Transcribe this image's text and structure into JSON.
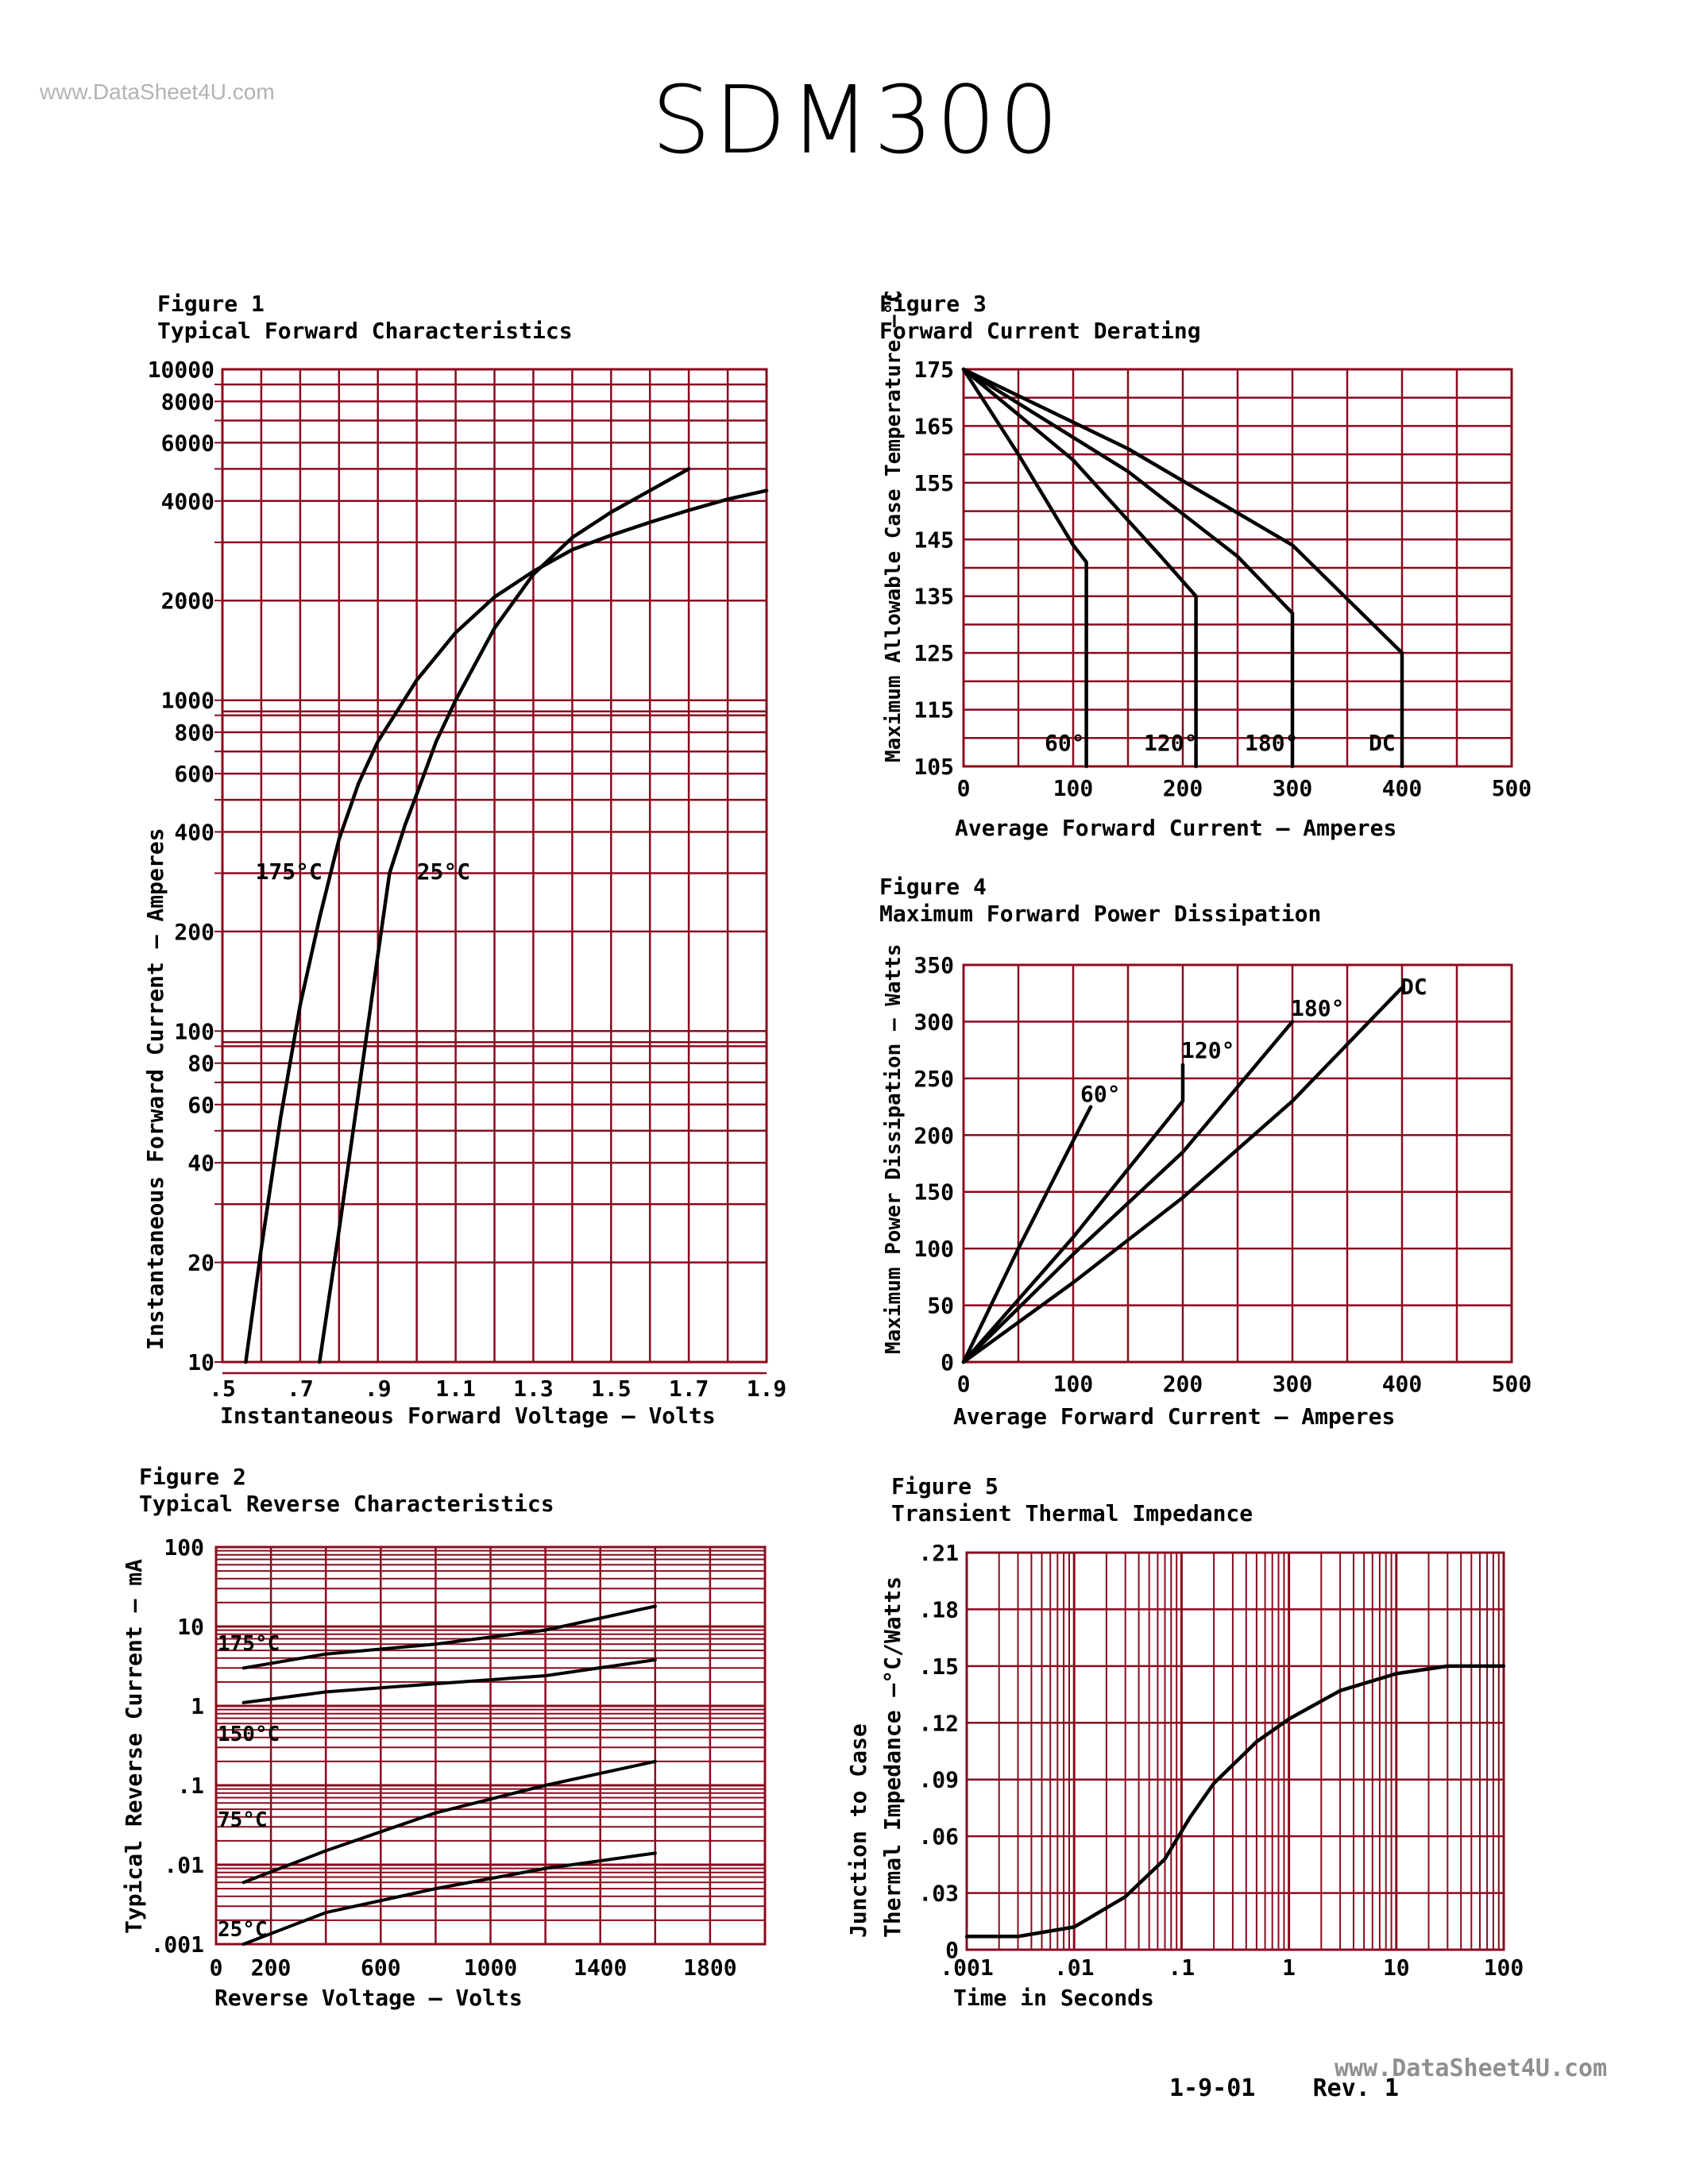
{
  "watermark_top": "www.DataSheet4U.com",
  "watermark_bottom": "www.DataSheet4U.com",
  "title": "SDM300",
  "footer": {
    "date": "1-9-01",
    "rev": "Rev. 1"
  },
  "colors": {
    "grid": "#8b0a1e",
    "curve": "#000000"
  },
  "chart_data": [
    {
      "id": "fig1",
      "type": "line",
      "figure_label": "Figure 1",
      "title": "Typical Forward Characteristics",
      "xlabel": "Instantaneous Forward Voltage  —  Volts",
      "ylabel": "Instantaneous Forward Current  —  Amperes",
      "xlim": [
        0.5,
        1.9
      ],
      "ylim": [
        10,
        10000
      ],
      "yscale": "log",
      "x_ticks": [
        ".5",
        ".7",
        ".9",
        "1.1",
        "1.3",
        "1.5",
        "1.7",
        "1.9"
      ],
      "y_ticks": [
        "10",
        "20",
        "40",
        "60",
        "80",
        "100",
        "200",
        "400",
        "600",
        "800",
        "1000",
        "2000",
        "4000",
        "6000",
        "8000",
        "10000"
      ],
      "series": [
        {
          "name": "175°C",
          "x": [
            0.56,
            0.6,
            0.65,
            0.7,
            0.75,
            0.8,
            0.85,
            0.9,
            1.0,
            1.1,
            1.2,
            1.3,
            1.4,
            1.5,
            1.6,
            1.7,
            1.8,
            1.9
          ],
          "y": [
            10,
            22,
            55,
            120,
            220,
            380,
            560,
            750,
            1150,
            1600,
            2050,
            2450,
            2850,
            3150,
            3450,
            3750,
            4050,
            4300
          ]
        },
        {
          "name": "25°C",
          "x": [
            0.75,
            0.8,
            0.85,
            0.9,
            0.93,
            0.97,
            1.0,
            1.05,
            1.1,
            1.2,
            1.3,
            1.4,
            1.5,
            1.6,
            1.7
          ],
          "y": [
            10,
            25,
            65,
            170,
            300,
            420,
            520,
            750,
            1000,
            1650,
            2400,
            3100,
            3700,
            4300,
            5000
          ]
        }
      ],
      "annotations": [
        "175°C",
        "25°C"
      ]
    },
    {
      "id": "fig2",
      "type": "line",
      "figure_label": "Figure 2",
      "title": "Typical Reverse Characteristics",
      "xlabel": "Reverse Voltage  —  Volts",
      "ylabel": "Typical Reverse Current  —  mA",
      "xlim": [
        0,
        2000
      ],
      "ylim": [
        0.001,
        100
      ],
      "yscale": "log",
      "x_ticks": [
        "0",
        "200",
        "600",
        "1000",
        "1400",
        "1800"
      ],
      "y_ticks": [
        ".001",
        ".01",
        ".1",
        "1",
        "10",
        "100"
      ],
      "series": [
        {
          "name": "175°C",
          "x": [
            100,
            400,
            800,
            1200,
            1600
          ],
          "y": [
            3,
            4.5,
            6,
            9,
            18
          ]
        },
        {
          "name": "150°C",
          "x": [
            100,
            400,
            800,
            1200,
            1600
          ],
          "y": [
            1.1,
            1.5,
            1.9,
            2.4,
            3.8
          ]
        },
        {
          "name": "75°C",
          "x": [
            100,
            400,
            800,
            1200,
            1600
          ],
          "y": [
            0.006,
            0.015,
            0.045,
            0.1,
            0.2
          ]
        },
        {
          "name": "25°C",
          "x": [
            100,
            400,
            800,
            1200,
            1600
          ],
          "y": [
            0.001,
            0.0025,
            0.005,
            0.009,
            0.014
          ]
        }
      ],
      "annotations": [
        "175°C",
        "150°C",
        "75°C",
        "25°C"
      ]
    },
    {
      "id": "fig3",
      "type": "line",
      "figure_label": "Figure 3",
      "title": "Forward Current Derating",
      "xlabel": "Average Forward Current  —  Amperes",
      "ylabel": "Maximum Allowable Case Temperature  —°C",
      "xlim": [
        0,
        500
      ],
      "ylim": [
        105,
        175
      ],
      "x_ticks": [
        "0",
        "100",
        "200",
        "300",
        "400",
        "500"
      ],
      "y_ticks": [
        "105",
        "115",
        "125",
        "135",
        "145",
        "155",
        "165",
        "175"
      ],
      "series": [
        {
          "name": "60°",
          "x": [
            0,
            50,
            100,
            112,
            112
          ],
          "y": [
            175,
            160,
            144,
            141,
            105
          ]
        },
        {
          "name": "120°",
          "x": [
            0,
            100,
            180,
            212,
            212
          ],
          "y": [
            175,
            159,
            142,
            135,
            105
          ]
        },
        {
          "name": "180°",
          "x": [
            0,
            150,
            250,
            300,
            300
          ],
          "y": [
            175,
            157,
            142,
            132,
            105
          ]
        },
        {
          "name": "DC",
          "x": [
            0,
            150,
            300,
            400,
            400
          ],
          "y": [
            175,
            161,
            144,
            125,
            105
          ]
        }
      ],
      "annotations": [
        "60°",
        "120°",
        "180°",
        "DC"
      ]
    },
    {
      "id": "fig4",
      "type": "line",
      "figure_label": "Figure 4",
      "title": "Maximum Forward Power Dissipation",
      "xlabel": "Average Forward Current  —  Amperes",
      "ylabel": "Maximum Power Dissipation  —  Watts",
      "xlim": [
        0,
        500
      ],
      "ylim": [
        0,
        350
      ],
      "x_ticks": [
        "0",
        "100",
        "200",
        "300",
        "400",
        "500"
      ],
      "y_ticks": [
        "0",
        "50",
        "100",
        "150",
        "200",
        "250",
        "300",
        "350"
      ],
      "series": [
        {
          "name": "60°",
          "x": [
            0,
            50,
            100,
            116
          ],
          "y": [
            0,
            100,
            195,
            225
          ]
        },
        {
          "name": "120°",
          "x": [
            0,
            100,
            200,
            200
          ],
          "y": [
            0,
            110,
            230,
            262
          ]
        },
        {
          "name": "180°",
          "x": [
            0,
            100,
            200,
            300
          ],
          "y": [
            0,
            95,
            185,
            300
          ]
        },
        {
          "name": "DC",
          "x": [
            0,
            100,
            200,
            300,
            400
          ],
          "y": [
            0,
            70,
            145,
            230,
            330
          ]
        }
      ],
      "annotations": [
        "60°",
        "120°",
        "180°",
        "DC"
      ]
    },
    {
      "id": "fig5",
      "type": "line",
      "figure_label": "Figure 5",
      "title": "Transient Thermal Impedance",
      "xlabel": "Time in Seconds",
      "ylabel": "Junction to Case Thermal Impedance  —°C/Watts",
      "xlim": [
        0.001,
        100
      ],
      "ylim": [
        0,
        0.21
      ],
      "xscale": "log",
      "x_ticks": [
        ".001",
        ".01",
        ".1",
        "1",
        "10",
        "100"
      ],
      "y_ticks": [
        "0",
        ".03",
        ".06",
        ".09",
        ".12",
        ".15",
        ".18",
        ".21"
      ],
      "series": [
        {
          "name": "",
          "x": [
            0.001,
            0.003,
            0.01,
            0.03,
            0.07,
            0.12,
            0.2,
            0.5,
            1,
            3,
            10,
            30,
            100
          ],
          "y": [
            0.007,
            0.007,
            0.012,
            0.028,
            0.048,
            0.07,
            0.088,
            0.11,
            0.122,
            0.137,
            0.146,
            0.15,
            0.15
          ]
        }
      ]
    }
  ]
}
